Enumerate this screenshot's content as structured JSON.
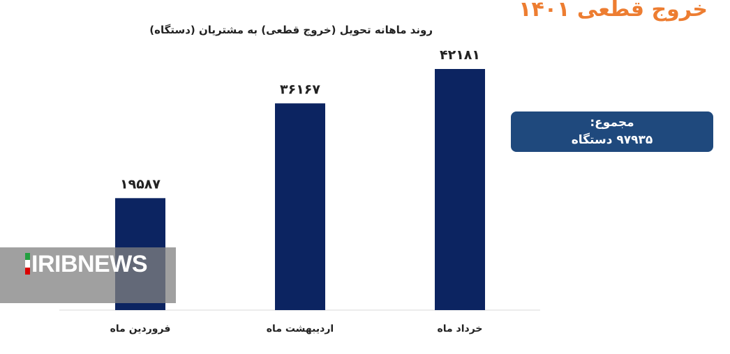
{
  "page": {
    "corner_title": "خروج قطعی ۱۴۰۱",
    "total_label": "مجموع:",
    "total_value": "۹۷۹۳۵ دستگاه"
  },
  "watermark": {
    "text": "IRIBNEWS"
  },
  "colors": {
    "bar": "#0c2461",
    "accent": "#ed7d31",
    "total_box": "#1f497d"
  },
  "chart_data": {
    "type": "bar",
    "title": "روند ماهانه تحویل (خروج قطعی) به مشتریان (دستگاه)",
    "categories": [
      "فروردین ماه",
      "اردیبهشت ماه",
      "خرداد ماه"
    ],
    "values": [
      19587,
      36167,
      42181
    ],
    "value_labels": [
      "۱۹۵۸۷",
      "۳۶۱۶۷",
      "۴۲۱۸۱"
    ],
    "xlabel": "",
    "ylabel": "",
    "ylim": [
      0,
      42181
    ],
    "grid": false
  }
}
